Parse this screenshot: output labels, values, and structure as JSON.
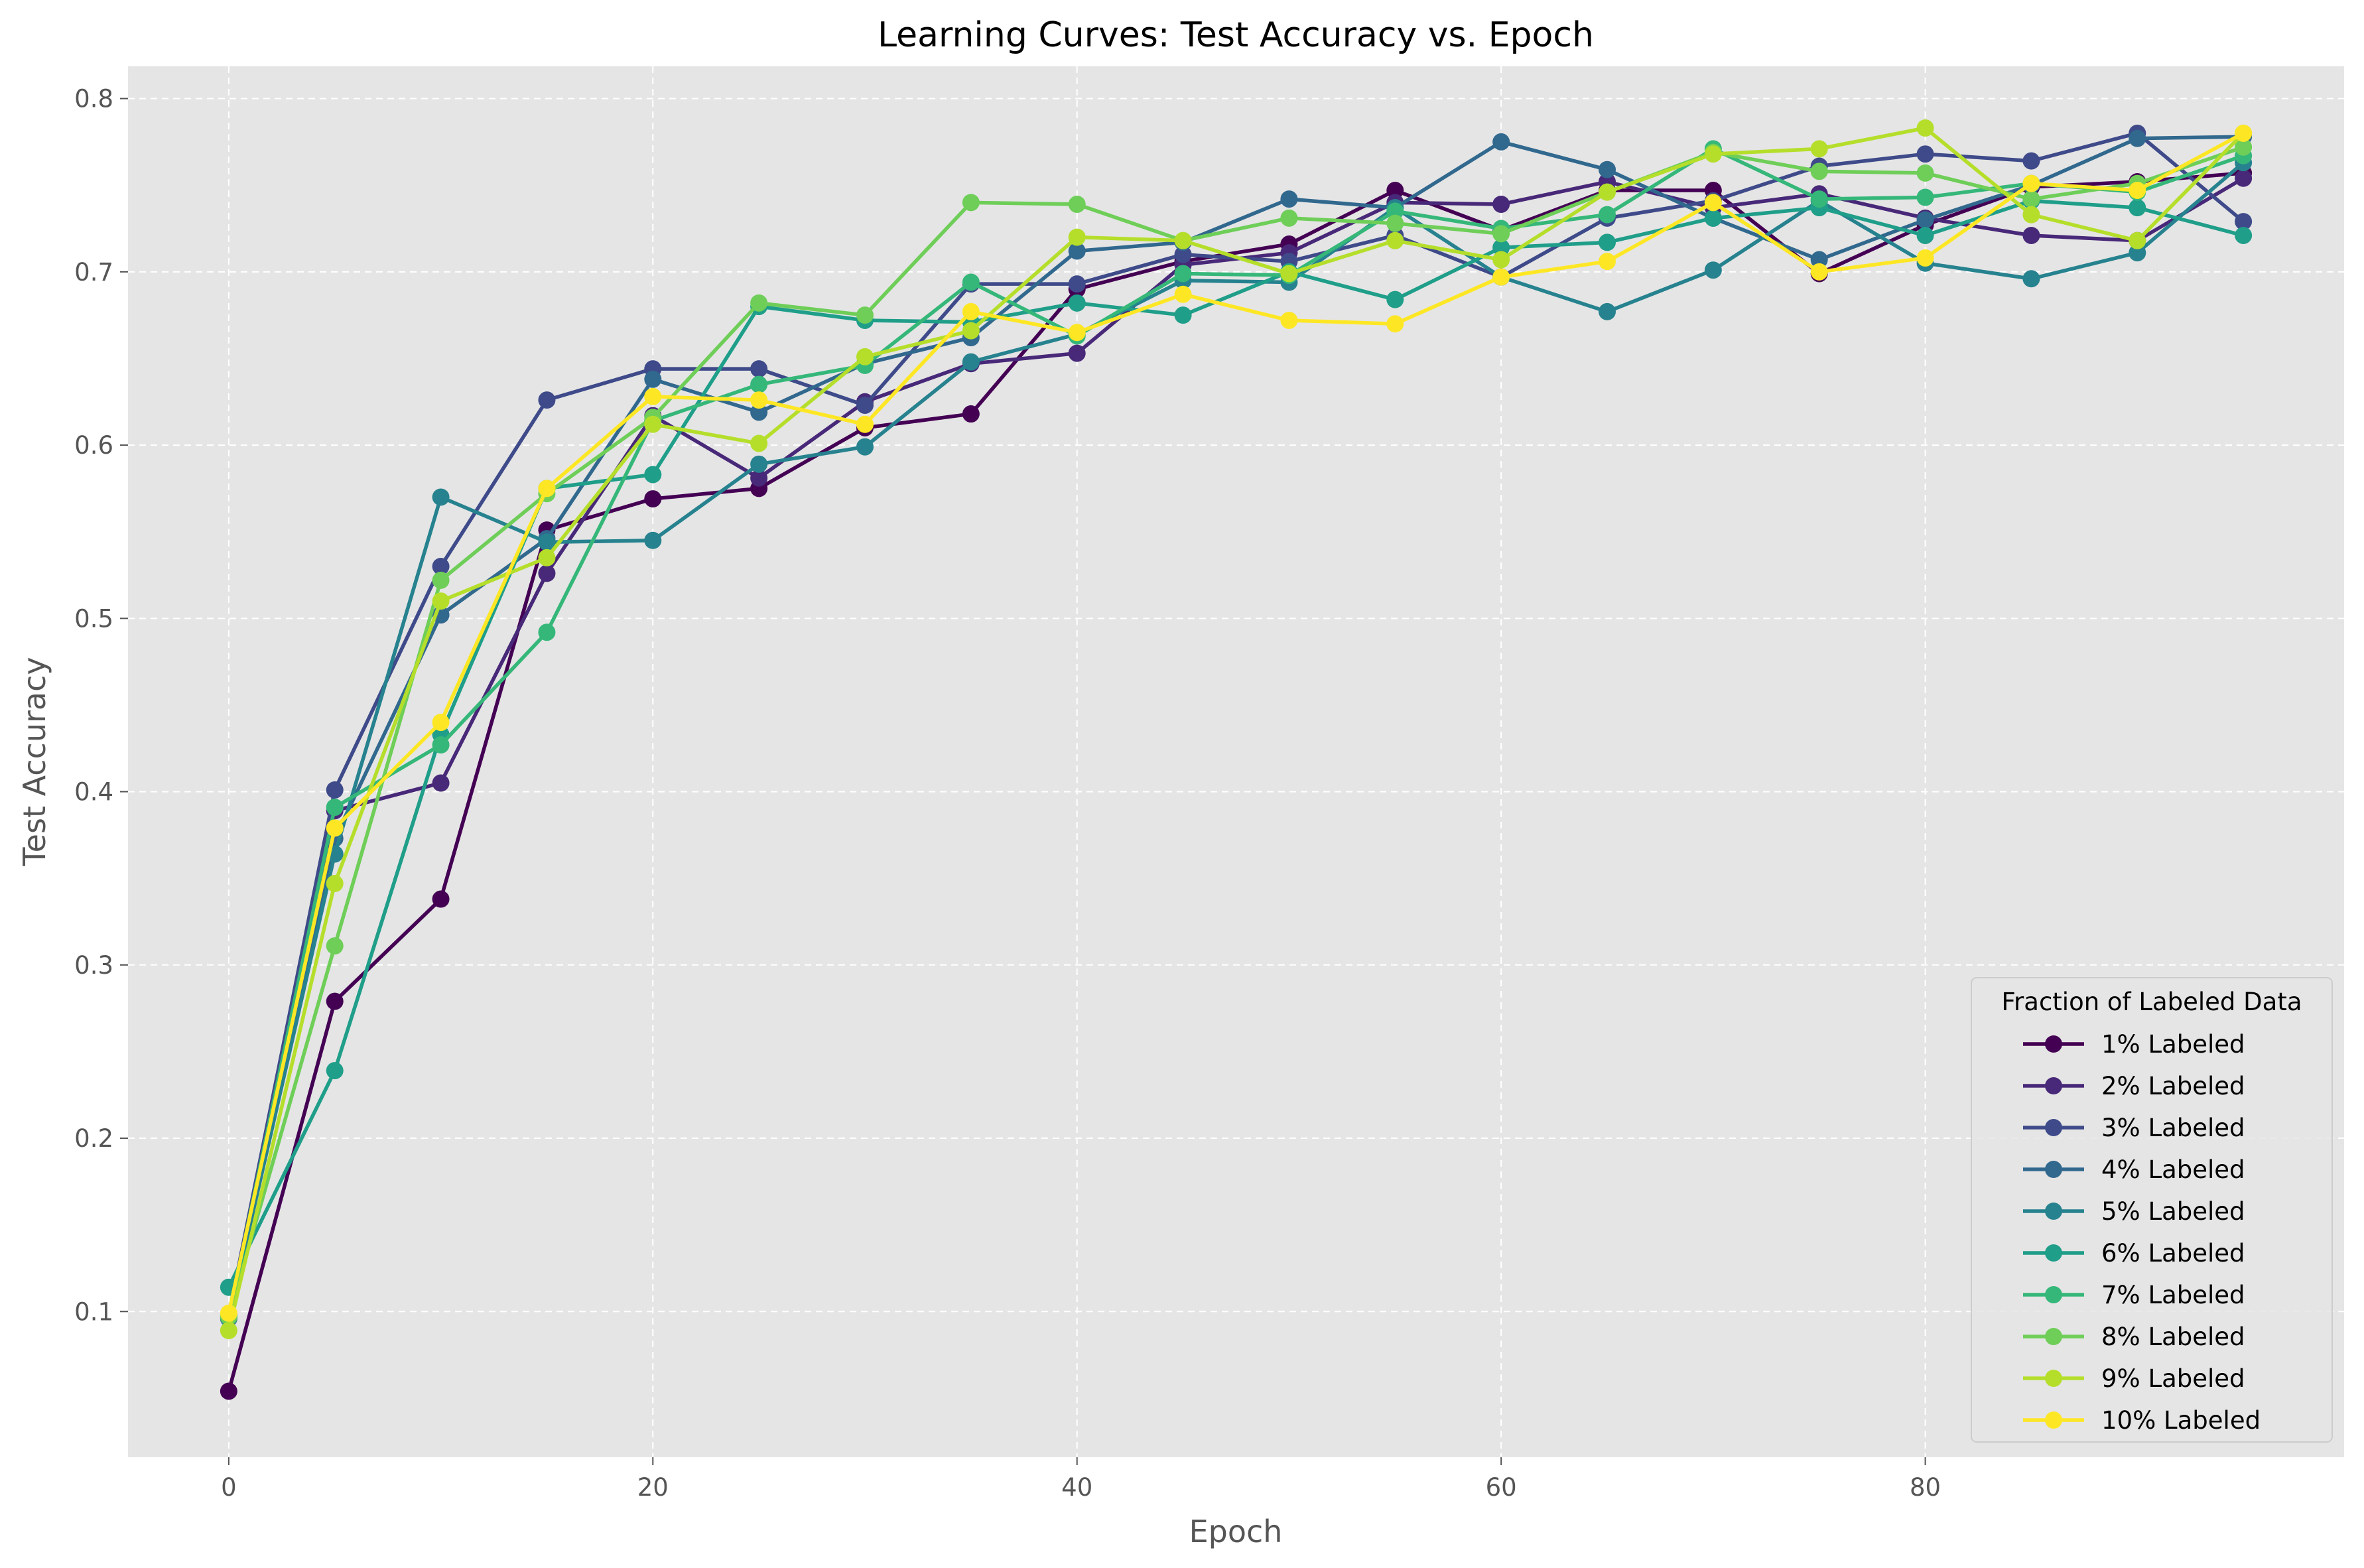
{
  "chart_data": {
    "type": "line",
    "title": "Learning Curves: Test Accuracy vs. Epoch",
    "xlabel": "Epoch",
    "ylabel": "Test Accuracy",
    "xlim": [
      -4.75,
      99.75
    ],
    "ylim": [
      0.0159,
      0.8186
    ],
    "xticks": [
      0,
      20,
      40,
      60,
      80
    ],
    "xtick_labels": [
      "0",
      "20",
      "40",
      "60",
      "80"
    ],
    "yticks": [
      0.1,
      0.2,
      0.3,
      0.4,
      0.5,
      0.6,
      0.7,
      0.8
    ],
    "ytick_labels": [
      "0.1",
      "0.2",
      "0.3",
      "0.4",
      "0.5",
      "0.6",
      "0.7",
      "0.8"
    ],
    "grid": true,
    "background": "#e5e5e5",
    "legend": {
      "title": "Fraction of Labeled Data",
      "position": "lower-right"
    },
    "x": [
      0,
      5,
      10,
      15,
      20,
      25,
      30,
      35,
      40,
      45,
      50,
      55,
      60,
      65,
      70,
      75,
      80,
      85,
      90,
      95
    ],
    "series": [
      {
        "name": "1% Labeled",
        "color": "#440154",
        "values": [
          0.054,
          0.279,
          0.338,
          0.551,
          0.569,
          0.575,
          0.61,
          0.618,
          0.69,
          0.706,
          0.716,
          0.747,
          0.724,
          0.747,
          0.747,
          0.699,
          0.727,
          0.749,
          0.752,
          0.757
        ]
      },
      {
        "name": "2% Labeled",
        "color": "#482878",
        "values": [
          0.096,
          0.389,
          0.405,
          0.526,
          0.617,
          0.581,
          0.625,
          0.647,
          0.653,
          0.704,
          0.711,
          0.74,
          0.739,
          0.752,
          0.737,
          0.745,
          0.731,
          0.721,
          0.718,
          0.754
        ]
      },
      {
        "name": "3% Labeled",
        "color": "#3e4a89",
        "values": [
          0.098,
          0.401,
          0.53,
          0.626,
          0.644,
          0.644,
          0.623,
          0.693,
          0.693,
          0.71,
          0.706,
          0.721,
          0.697,
          0.731,
          0.741,
          0.761,
          0.768,
          0.764,
          0.78,
          0.729
        ]
      },
      {
        "name": "4% Labeled",
        "color": "#31688e",
        "values": [
          0.097,
          0.373,
          0.502,
          0.546,
          0.638,
          0.619,
          0.647,
          0.662,
          0.712,
          0.717,
          0.742,
          0.737,
          0.775,
          0.759,
          0.731,
          0.707,
          0.73,
          0.75,
          0.777,
          0.778
        ]
      },
      {
        "name": "5% Labeled",
        "color": "#26828e",
        "values": [
          0.096,
          0.364,
          0.57,
          0.544,
          0.545,
          0.589,
          0.599,
          0.648,
          0.664,
          0.695,
          0.694,
          0.737,
          0.697,
          0.677,
          0.701,
          0.741,
          0.705,
          0.696,
          0.711,
          0.763
        ]
      },
      {
        "name": "6% Labeled",
        "color": "#1f9e89",
        "values": [
          0.114,
          0.239,
          0.433,
          0.575,
          0.583,
          0.68,
          0.672,
          0.671,
          0.682,
          0.675,
          0.7,
          0.684,
          0.714,
          0.717,
          0.731,
          0.737,
          0.721,
          0.741,
          0.737,
          0.721
        ]
      },
      {
        "name": "7% Labeled",
        "color": "#35b779",
        "values": [
          0.097,
          0.391,
          0.427,
          0.492,
          0.614,
          0.635,
          0.646,
          0.694,
          0.663,
          0.699,
          0.698,
          0.735,
          0.725,
          0.733,
          0.771,
          0.742,
          0.743,
          0.751,
          0.746,
          0.767
        ]
      },
      {
        "name": "8% Labeled",
        "color": "#6ece58",
        "values": [
          0.097,
          0.311,
          0.522,
          0.572,
          0.616,
          0.682,
          0.675,
          0.74,
          0.739,
          0.718,
          0.731,
          0.728,
          0.722,
          0.746,
          0.769,
          0.758,
          0.757,
          0.742,
          0.751,
          0.772
        ]
      },
      {
        "name": "9% Labeled",
        "color": "#b5de2b",
        "values": [
          0.089,
          0.347,
          0.51,
          0.535,
          0.612,
          0.601,
          0.651,
          0.666,
          0.72,
          0.718,
          0.699,
          0.718,
          0.707,
          0.746,
          0.768,
          0.771,
          0.783,
          0.733,
          0.718,
          0.78
        ]
      },
      {
        "name": "10% Labeled",
        "color": "#fde725",
        "values": [
          0.099,
          0.379,
          0.44,
          0.575,
          0.628,
          0.626,
          0.612,
          0.677,
          0.665,
          0.687,
          0.672,
          0.67,
          0.697,
          0.706,
          0.74,
          0.7,
          0.708,
          0.751,
          0.747,
          0.78
        ]
      }
    ]
  }
}
